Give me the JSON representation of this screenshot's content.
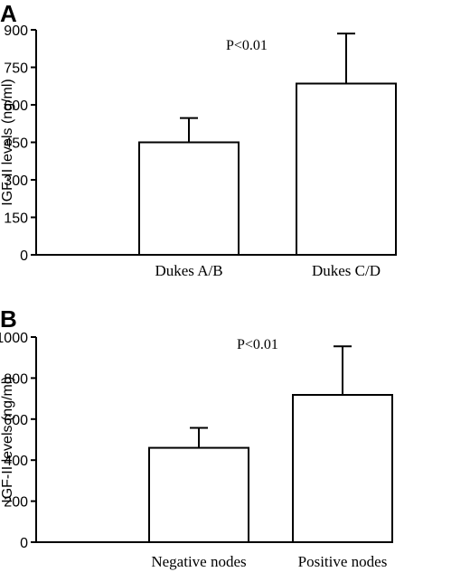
{
  "chart_data": [
    {
      "type": "bar",
      "panel": "A",
      "title": "",
      "xlabel": "",
      "ylabel": "IGF-II levels (ng/ml)",
      "categories": [
        "Dukes A/B",
        "Dukes C/D"
      ],
      "values": [
        450,
        685
      ],
      "errors": [
        97,
        200
      ],
      "yticks": [
        "0",
        "150",
        "300",
        "450",
        "600",
        "750",
        "900"
      ],
      "ylim": [
        0,
        900
      ],
      "annotation": "P<0.01",
      "grid": false
    },
    {
      "type": "bar",
      "panel": "B",
      "title": "",
      "xlabel": "",
      "ylabel": "IGF-II levels (ng/ml)",
      "categories": [
        "Negative nodes",
        "Positive nodes"
      ],
      "values": [
        460,
        718
      ],
      "errors": [
        97,
        237
      ],
      "yticks": [
        "0",
        "200",
        "400",
        "600",
        "800",
        "1000"
      ],
      "ylim": [
        0,
        1000
      ],
      "annotation": "P<0.01",
      "grid": false
    }
  ]
}
